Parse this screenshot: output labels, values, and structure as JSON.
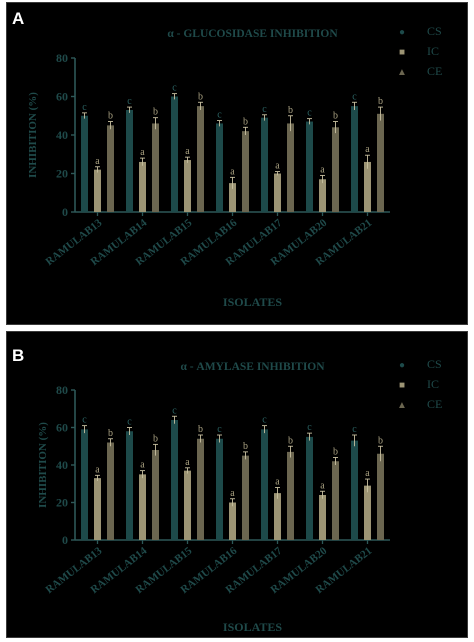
{
  "figure": {
    "panel_labels": [
      "A",
      "B"
    ]
  },
  "colors": {
    "CS": "#1d4a4a",
    "IC": "#9c9474",
    "CE": "#6b6650",
    "text": "#1f4a4a",
    "axis": "#2e5858"
  },
  "chart_data": [
    {
      "type": "bar",
      "title": "α - GLUCOSIDASE INHIBITION",
      "xlabel": "ISOLATES",
      "ylabel": "INHIBITION (%)",
      "ylim": [
        0,
        80
      ],
      "yticks": [
        "0",
        "20",
        "40",
        "60",
        "80"
      ],
      "categories": [
        "RAMULAB13",
        "RAMULAB14",
        "RAMULAB15",
        "RAMULAB16",
        "RAMULAB17",
        "RAMULAB20",
        "RAMULAB21"
      ],
      "legend_position": "top-right",
      "series": [
        {
          "name": "CS",
          "marker": "●",
          "values": [
            50,
            53,
            60,
            46,
            49,
            47,
            55
          ],
          "errors": [
            1.5,
            1.5,
            1.5,
            1.5,
            1.5,
            1.5,
            2
          ],
          "letters": [
            "c",
            "c",
            "c",
            "c",
            "c",
            "c",
            "c"
          ]
        },
        {
          "name": "IC",
          "marker": "■",
          "values": [
            22,
            26,
            27,
            15,
            20,
            17,
            26
          ],
          "errors": [
            1.5,
            2,
            1.5,
            3,
            1,
            2,
            3.5
          ],
          "letters": [
            "a",
            "a",
            "a",
            "a",
            "a",
            "a",
            "a"
          ]
        },
        {
          "name": "CE",
          "marker": "▲",
          "values": [
            45,
            46,
            55,
            42,
            46,
            44,
            51
          ],
          "errors": [
            2,
            3,
            2,
            2,
            4,
            3,
            3.5
          ],
          "letters": [
            "b",
            "b",
            "b",
            "b",
            "b",
            "b",
            "b"
          ]
        }
      ]
    },
    {
      "type": "bar",
      "title": "α - AMYLASE INHIBITION",
      "xlabel": "ISOLATES",
      "ylabel": "INHIBITION (%)",
      "ylim": [
        0,
        80
      ],
      "yticks": [
        "0",
        "20",
        "40",
        "60",
        "80"
      ],
      "categories": [
        "RAMULAB13",
        "RAMULAB14",
        "RAMULAB15",
        "RAMULAB16",
        "RAMULAB17",
        "RAMULAB20",
        "RAMULAB21"
      ],
      "legend_position": "top-right",
      "series": [
        {
          "name": "CS",
          "marker": "●",
          "values": [
            59,
            58,
            64,
            54,
            59,
            55,
            53
          ],
          "errors": [
            2,
            2,
            2,
            2,
            2,
            2,
            3
          ],
          "letters": [
            "c",
            "c",
            "c",
            "c",
            "c",
            "c",
            "c"
          ]
        },
        {
          "name": "IC",
          "marker": "■",
          "values": [
            33,
            35,
            37,
            20,
            25,
            24,
            29
          ],
          "errors": [
            1.5,
            2,
            1.5,
            2,
            3,
            2,
            3.5
          ],
          "letters": [
            "a",
            "a",
            "a",
            "a",
            "a",
            "a",
            "a"
          ]
        },
        {
          "name": "CE",
          "marker": "▲",
          "values": [
            52,
            48,
            54,
            45,
            47,
            42,
            46
          ],
          "errors": [
            2,
            3,
            2,
            2,
            3,
            2,
            4
          ],
          "letters": [
            "b",
            "b",
            "b",
            "b",
            "b",
            "b",
            "b"
          ]
        }
      ]
    }
  ]
}
